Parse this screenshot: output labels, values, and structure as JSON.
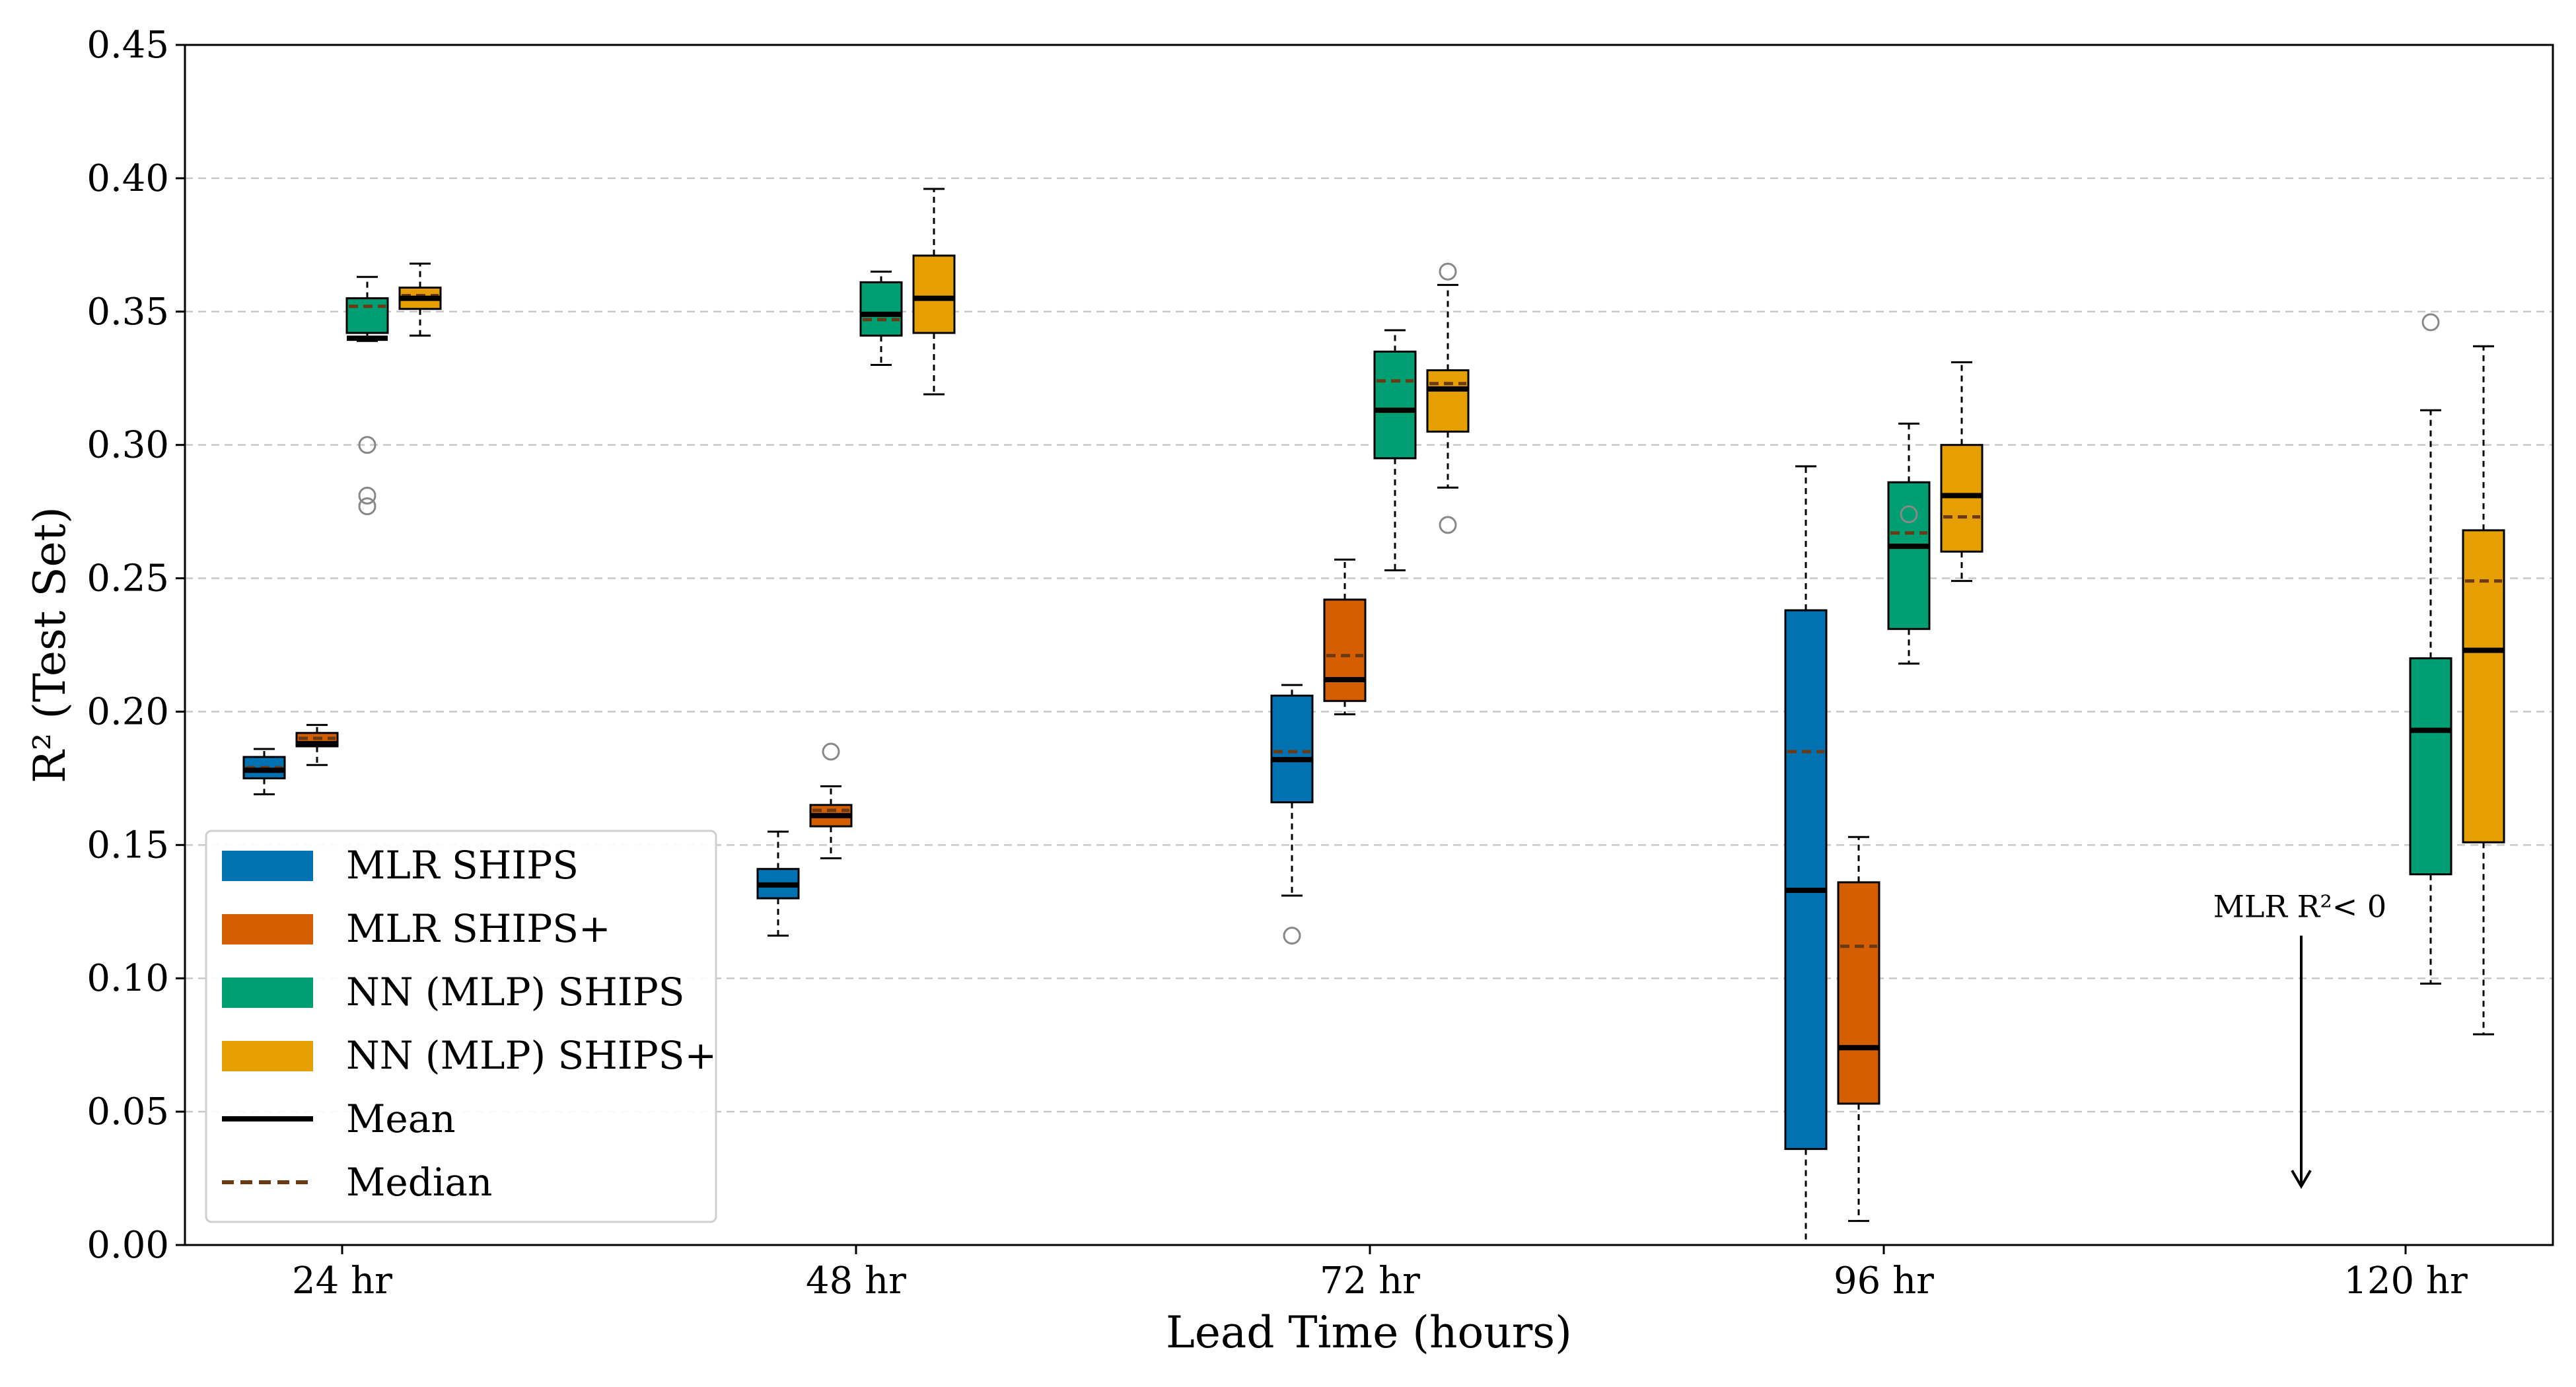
{
  "chart_data": {
    "type": "box",
    "title": "",
    "xlabel": "Lead Time (hours)",
    "ylabel": "R² (Test Set)",
    "ylim": [
      0,
      0.45
    ],
    "yticks": [
      "0.00",
      "0.05",
      "0.10",
      "0.15",
      "0.20",
      "0.25",
      "0.30",
      "0.35",
      "0.40",
      "0.45"
    ],
    "grid": "y-dashed",
    "categories": [
      "24 hr",
      "48 hr",
      "72 hr",
      "96 hr",
      "120 hr"
    ],
    "legend_position": "lower-left",
    "series": [
      {
        "name": "MLR SHIPS",
        "color": "#0072B2",
        "boxes": [
          {
            "category": "24 hr",
            "whislo": 0.169,
            "q1": 0.175,
            "median": 0.179,
            "mean": 0.178,
            "q3": 0.183,
            "whishi": 0.186,
            "fliers": []
          },
          {
            "category": "48 hr",
            "whislo": 0.116,
            "q1": 0.13,
            "median": 0.135,
            "mean": 0.135,
            "q3": 0.141,
            "whishi": 0.155,
            "fliers": []
          },
          {
            "category": "72 hr",
            "whislo": 0.131,
            "q1": 0.166,
            "median": 0.185,
            "mean": 0.182,
            "q3": 0.206,
            "whishi": 0.21,
            "fliers": [
              0.116
            ]
          },
          {
            "category": "96 hr",
            "whislo": -0.02,
            "q1": 0.036,
            "median": 0.185,
            "mean": 0.133,
            "q3": 0.238,
            "whishi": 0.292,
            "fliers": []
          }
        ]
      },
      {
        "name": "MLR SHIPS+",
        "color": "#D55E00",
        "boxes": [
          {
            "category": "24 hr",
            "whislo": 0.18,
            "q1": 0.187,
            "median": 0.19,
            "mean": 0.188,
            "q3": 0.192,
            "whishi": 0.195,
            "fliers": []
          },
          {
            "category": "48 hr",
            "whislo": 0.145,
            "q1": 0.157,
            "median": 0.163,
            "mean": 0.161,
            "q3": 0.165,
            "whishi": 0.172,
            "fliers": [
              0.185
            ]
          },
          {
            "category": "72 hr",
            "whislo": 0.199,
            "q1": 0.204,
            "median": 0.221,
            "mean": 0.212,
            "q3": 0.242,
            "whishi": 0.257,
            "fliers": []
          },
          {
            "category": "96 hr",
            "whislo": 0.009,
            "q1": 0.053,
            "median": 0.112,
            "mean": 0.074,
            "q3": 0.136,
            "whishi": 0.153,
            "fliers": []
          }
        ]
      },
      {
        "name": "NN (MLP) SHIPS",
        "color": "#009E73",
        "boxes": [
          {
            "category": "24 hr",
            "whislo": 0.339,
            "q1": 0.342,
            "median": 0.352,
            "mean": 0.34,
            "q3": 0.355,
            "whishi": 0.363,
            "fliers": [
              0.3,
              0.281,
              0.277
            ]
          },
          {
            "category": "48 hr",
            "whislo": 0.33,
            "q1": 0.341,
            "median": 0.347,
            "mean": 0.349,
            "q3": 0.361,
            "whishi": 0.365,
            "fliers": []
          },
          {
            "category": "72 hr",
            "whislo": 0.253,
            "q1": 0.295,
            "median": 0.324,
            "mean": 0.313,
            "q3": 0.335,
            "whishi": 0.343,
            "fliers": []
          },
          {
            "category": "96 hr",
            "whislo": 0.218,
            "q1": 0.231,
            "median": 0.267,
            "mean": 0.262,
            "q3": 0.286,
            "whishi": 0.308,
            "fliers": [
              0.274
            ]
          },
          {
            "category": "120 hr",
            "whislo": 0.098,
            "q1": 0.139,
            "median": 0.193,
            "mean": 0.193,
            "q3": 0.22,
            "whishi": 0.313,
            "fliers": [
              0.346
            ]
          }
        ]
      },
      {
        "name": "NN (MLP) SHIPS+",
        "color": "#E69F00",
        "boxes": [
          {
            "category": "24 hr",
            "whislo": 0.341,
            "q1": 0.351,
            "median": 0.356,
            "mean": 0.355,
            "q3": 0.359,
            "whishi": 0.368,
            "fliers": []
          },
          {
            "category": "48 hr",
            "whislo": 0.319,
            "q1": 0.342,
            "median": 0.355,
            "mean": 0.355,
            "q3": 0.371,
            "whishi": 0.396,
            "fliers": []
          },
          {
            "category": "72 hr",
            "whislo": 0.284,
            "q1": 0.305,
            "median": 0.323,
            "mean": 0.321,
            "q3": 0.328,
            "whishi": 0.36,
            "fliers": [
              0.365,
              0.27
            ]
          },
          {
            "category": "96 hr",
            "whislo": 0.249,
            "q1": 0.26,
            "median": 0.273,
            "mean": 0.281,
            "q3": 0.3,
            "whishi": 0.331,
            "fliers": []
          },
          {
            "category": "120 hr",
            "whislo": 0.079,
            "q1": 0.151,
            "median": 0.249,
            "mean": 0.223,
            "q3": 0.268,
            "whishi": 0.337,
            "fliers": []
          }
        ]
      }
    ],
    "legend": {
      "items": [
        {
          "label": "MLR SHIPS",
          "kind": "patch",
          "color": "#0072B2"
        },
        {
          "label": "MLR SHIPS+",
          "kind": "patch",
          "color": "#D55E00"
        },
        {
          "label": "NN (MLP) SHIPS",
          "kind": "patch",
          "color": "#009E73"
        },
        {
          "label": "NN (MLP) SHIPS+",
          "kind": "patch",
          "color": "#E69F00"
        },
        {
          "label": "Mean",
          "kind": "line",
          "color": "#000000"
        },
        {
          "label": "Median",
          "kind": "dashed",
          "color": "#6b3a12"
        }
      ]
    },
    "annotations": [
      {
        "text": "MLR R²< 0",
        "category": "120 hr",
        "arrow_from": 0.116,
        "arrow_to": 0.022
      }
    ],
    "colors": {
      "median": "#6b3a12",
      "mean": "#000000",
      "grid": "#c8c8c8",
      "flier": "#888888"
    }
  }
}
